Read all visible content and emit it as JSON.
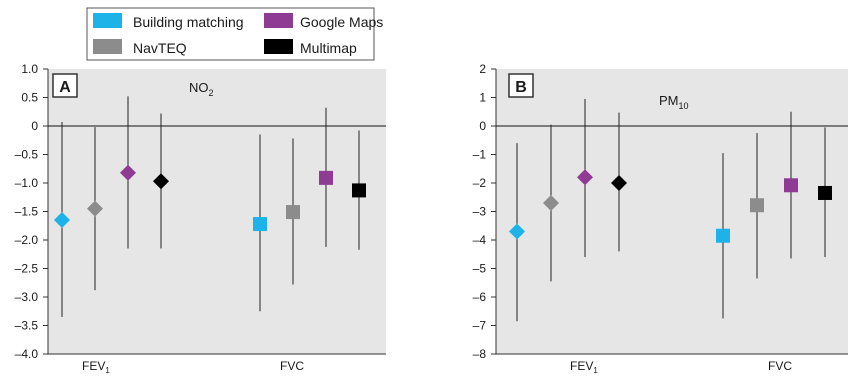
{
  "legend": {
    "entries": [
      {
        "label": "Building matching",
        "color": "#1eb3e8",
        "shape": "square"
      },
      {
        "label": "Google Maps",
        "color": "#8e3b94",
        "shape": "square"
      },
      {
        "label": "NavTEQ",
        "color": "#8c8c8c",
        "shape": "square"
      },
      {
        "label": "Multimap",
        "color": "#000000",
        "shape": "square"
      }
    ]
  },
  "panel_bg": "#e6e6e6",
  "chart_data": [
    {
      "type": "scatter",
      "panel_label": "A",
      "title": "NO",
      "title_sub": "2",
      "categories": [
        "FEV",
        "FVC"
      ],
      "category_subs": [
        "1",
        ""
      ],
      "ylim": [
        -4.0,
        1.0
      ],
      "yticks": [
        1.0,
        0.5,
        0,
        -0.5,
        -1.0,
        -1.5,
        -2.0,
        -2.5,
        -3.0,
        -3.5,
        -4.0
      ],
      "ytick_labels": [
        "1.0",
        "0.5",
        "0",
        "–0.5",
        "–1.0",
        "–1.5",
        "–2.0",
        "–2.5",
        "–3.0",
        "–3.5",
        "–4.0"
      ],
      "zero_line": true,
      "series": [
        {
          "name": "Building matching",
          "color": "#1eb3e8",
          "points": [
            {
              "category": "FEV",
              "marker": "diamond",
              "estimate": -1.65,
              "lower": -3.35,
              "upper": 0.07
            },
            {
              "category": "FVC",
              "marker": "square",
              "estimate": -1.72,
              "lower": -3.25,
              "upper": -0.15
            }
          ]
        },
        {
          "name": "NavTEQ",
          "color": "#8c8c8c",
          "points": [
            {
              "category": "FEV",
              "marker": "diamond",
              "estimate": -1.45,
              "lower": -2.88,
              "upper": -0.02
            },
            {
              "category": "FVC",
              "marker": "square",
              "estimate": -1.51,
              "lower": -2.78,
              "upper": -0.22
            }
          ]
        },
        {
          "name": "Google Maps",
          "color": "#8e3b94",
          "points": [
            {
              "category": "FEV",
              "marker": "diamond",
              "estimate": -0.82,
              "lower": -2.15,
              "upper": 0.52
            },
            {
              "category": "FVC",
              "marker": "square",
              "estimate": -0.91,
              "lower": -2.12,
              "upper": 0.32
            }
          ]
        },
        {
          "name": "Multimap",
          "color": "#000000",
          "points": [
            {
              "category": "FEV",
              "marker": "diamond",
              "estimate": -0.97,
              "lower": -2.15,
              "upper": 0.22
            },
            {
              "category": "FVC",
              "marker": "square",
              "estimate": -1.13,
              "lower": -2.17,
              "upper": -0.08
            }
          ]
        }
      ]
    },
    {
      "type": "scatter",
      "panel_label": "B",
      "title": "PM",
      "title_sub": "10",
      "categories": [
        "FEV",
        "FVC"
      ],
      "category_subs": [
        "1",
        ""
      ],
      "ylim": [
        -8,
        2
      ],
      "yticks": [
        2,
        1,
        0,
        -1,
        -2,
        -3,
        -4,
        -5,
        -6,
        -7,
        -8
      ],
      "ytick_labels": [
        "2",
        "1",
        "0",
        "–1",
        "–2",
        "–3",
        "–4",
        "–5",
        "–6",
        "–7",
        "–8"
      ],
      "zero_line": true,
      "series": [
        {
          "name": "Building matching",
          "color": "#1eb3e8",
          "points": [
            {
              "category": "FEV",
              "marker": "diamond",
              "estimate": -3.7,
              "lower": -6.85,
              "upper": -0.6
            },
            {
              "category": "FVC",
              "marker": "square",
              "estimate": -3.85,
              "lower": -6.75,
              "upper": -0.95
            }
          ]
        },
        {
          "name": "NavTEQ",
          "color": "#8c8c8c",
          "points": [
            {
              "category": "FEV",
              "marker": "diamond",
              "estimate": -2.7,
              "lower": -5.45,
              "upper": 0.05
            }
          ]
        },
        {
          "name": "Google Maps",
          "color": "#8e3b94",
          "points": [
            {
              "category": "FEV",
              "marker": "diamond",
              "estimate": -1.8,
              "lower": -4.6,
              "upper": 0.95
            },
            {
              "category": "FVC",
              "marker": "square",
              "estimate": -2.08,
              "lower": -4.65,
              "upper": 0.5
            }
          ]
        },
        {
          "name": "Multimap",
          "color": "#000000",
          "points": [
            {
              "category": "FEV",
              "marker": "diamond",
              "estimate": -2.0,
              "lower": -4.4,
              "upper": 0.47
            },
            {
              "category": "FVC",
              "marker": "square",
              "estimate": -2.35,
              "lower": -4.6,
              "upper": -0.05
            }
          ]
        }
      ]
    }
  ],
  "extra_points": [
    {
      "panel": 1,
      "series": "NavTEQ",
      "category": "FVC",
      "marker": "square",
      "color": "#8c8c8c",
      "estimate": -2.78,
      "lower": -5.35,
      "upper": -0.25
    }
  ]
}
